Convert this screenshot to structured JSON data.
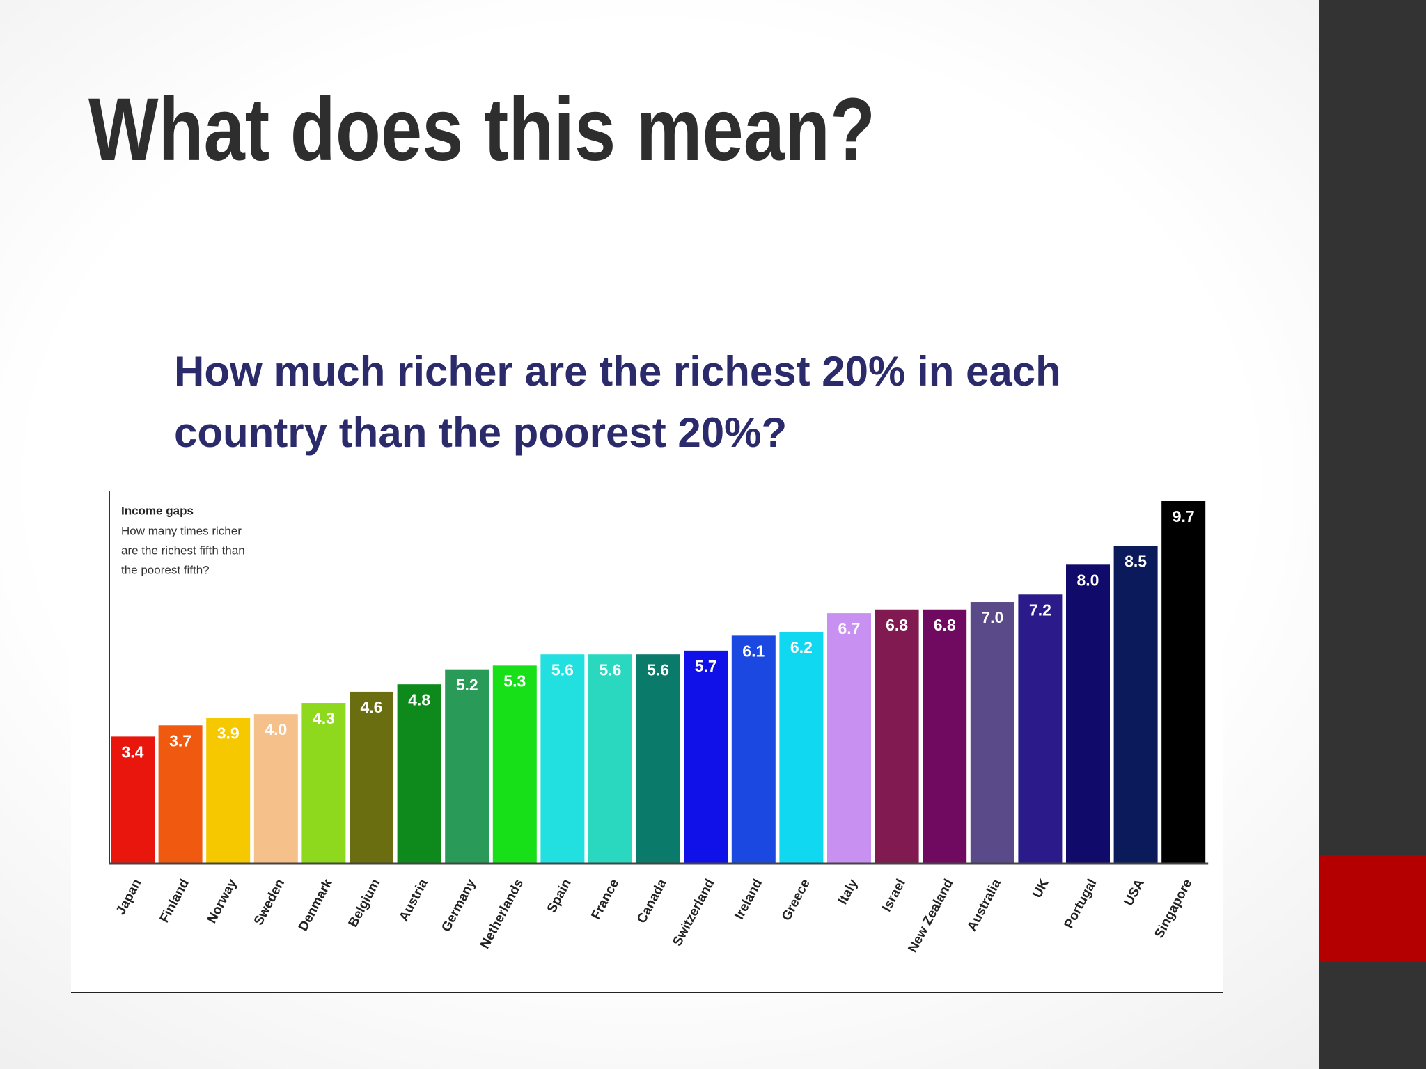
{
  "slide": {
    "title": "What does this mean?"
  },
  "chart_data": {
    "type": "bar",
    "title": "How much richer are the richest 20% in each country than the poorest 20%?",
    "annotation": {
      "title": "Income gaps",
      "lines": [
        "How many times richer",
        "are the richest fifth than",
        "the poorest fifth?"
      ]
    },
    "categories": [
      "Japan",
      "Finland",
      "Norway",
      "Sweden",
      "Denmark",
      "Belgium",
      "Austria",
      "Germany",
      "Netherlands",
      "Spain",
      "France",
      "Canada",
      "Switzerland",
      "Ireland",
      "Greece",
      "Italy",
      "Israel",
      "New Zealand",
      "Australia",
      "UK",
      "Portugal",
      "USA",
      "Singapore"
    ],
    "values": [
      3.4,
      3.7,
      3.9,
      4.0,
      4.3,
      4.6,
      4.8,
      5.2,
      5.3,
      5.6,
      5.6,
      5.6,
      5.7,
      6.1,
      6.2,
      6.7,
      6.8,
      6.8,
      7.0,
      7.2,
      8.0,
      8.5,
      9.7
    ],
    "value_labels": [
      "3.4",
      "3.7",
      "3.9",
      "4.0",
      "4.3",
      "4.6",
      "4.8",
      "5.2",
      "5.3",
      "5.6",
      "5.6",
      "5.6",
      "5.7",
      "6.1",
      "6.2",
      "6.7",
      "6.8",
      "6.8",
      "7.0",
      "7.2",
      "8.0",
      "8.5",
      "9.7"
    ],
    "colors": [
      "#e8160c",
      "#f05a10",
      "#f5c800",
      "#f5c08a",
      "#8ed81e",
      "#6b6e10",
      "#0e8a1c",
      "#2a9a58",
      "#18e018",
      "#22e0e0",
      "#2ad8c0",
      "#0a7a6a",
      "#1010e8",
      "#1a48e0",
      "#10d8f0",
      "#c890f0",
      "#801a50",
      "#700a60",
      "#5a4a8a",
      "#2a1a8a",
      "#100a6a",
      "#0a1a5a",
      "#000000"
    ]
  }
}
